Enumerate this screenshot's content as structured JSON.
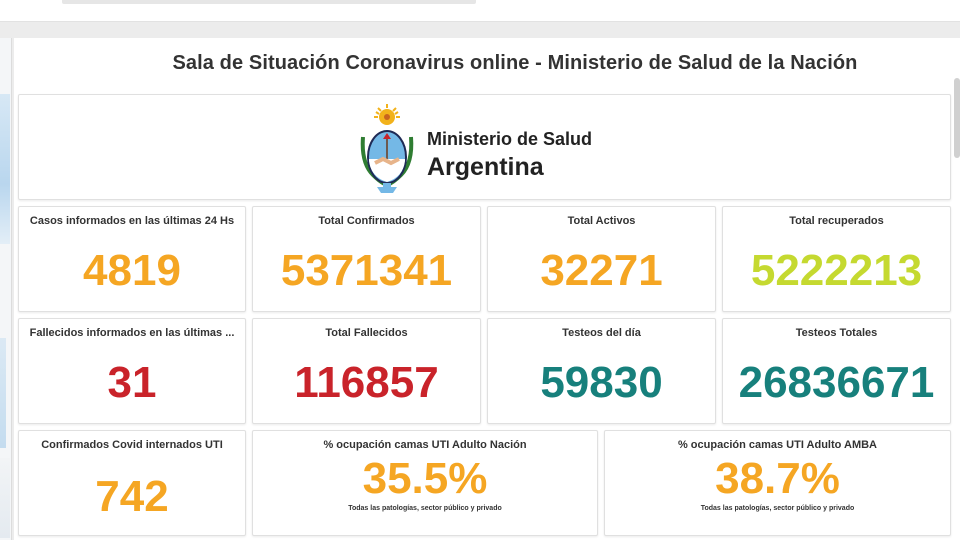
{
  "page_title": "Sala de Situación Coronavirus online - Ministerio de Salud de la Nación",
  "logo": {
    "line1": "Ministerio de Salud",
    "line2": "Argentina"
  },
  "colors": {
    "orange": "#f5a623",
    "green": "#c5d930",
    "red": "#c9232a",
    "teal": "#17807c"
  },
  "kpis": {
    "casos_24h": {
      "label": "Casos informados en las últimas 24 Hs",
      "value": "4819"
    },
    "total_confirmados": {
      "label": "Total Confirmados",
      "value": "5371341"
    },
    "total_activos": {
      "label": "Total Activos",
      "value": "32271"
    },
    "total_recuperados": {
      "label": "Total recuperados",
      "value": "5222213"
    },
    "fallecidos_ultimas": {
      "label": "Fallecidos informados en las últimas ...",
      "value": "31"
    },
    "total_fallecidos": {
      "label": "Total Fallecidos",
      "value": "116857"
    },
    "testeos_dia": {
      "label": "Testeos del día",
      "value": "59830"
    },
    "testeos_totales": {
      "label": "Testeos Totales",
      "value": "26836671"
    },
    "internados_uti": {
      "label": "Confirmados Covid internados UTI",
      "value": "742"
    },
    "ocupacion_nacion": {
      "label": "% ocupación camas UTI Adulto Nación",
      "value": "35.5%",
      "note": "Todas las patologías, sector público y privado"
    },
    "ocupacion_amba": {
      "label": "% ocupación camas UTI Adulto AMBA",
      "value": "38.7%",
      "note": "Todas las patologías, sector público y privado"
    }
  }
}
